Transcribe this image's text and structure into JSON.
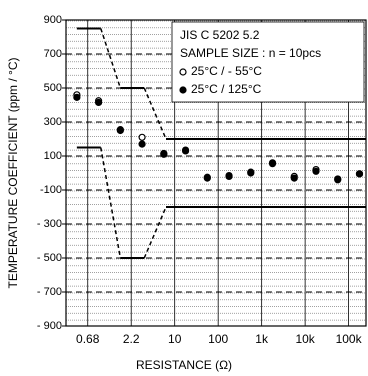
{
  "chart_data": {
    "type": "scatter",
    "x_label": "RESISTANCE  (Ω)",
    "y_label": "TEMPERATURE  COEFFICIENT (ppm / °C)",
    "annotations": [
      "JIS C 5202 5.2",
      "SAMPLE SIZE : n = 10pcs"
    ],
    "xlim": [
      -0.5,
      6.4
    ],
    "xticks": [
      {
        "value": 0,
        "label": "0.68"
      },
      {
        "value": 1,
        "label": "2.2"
      },
      {
        "value": 2,
        "label": "10"
      },
      {
        "value": 3,
        "label": "100"
      },
      {
        "value": 4,
        "label": "1k"
      },
      {
        "value": 5,
        "label": "10k"
      },
      {
        "value": 6,
        "label": "100k"
      }
    ],
    "ylim": [
      -900,
      900
    ],
    "yticks": [
      {
        "value": -900,
        "label": "- 900"
      },
      {
        "value": -700,
        "label": "- 700"
      },
      {
        "value": -500,
        "label": "- 500"
      },
      {
        "value": -300,
        "label": "- 300"
      },
      {
        "value": -100,
        "label": "-100"
      },
      100,
      300,
      500,
      700,
      900
    ],
    "grid": true,
    "x": [
      -0.25,
      0.25,
      0.75,
      1.25,
      1.75,
      2.25,
      2.75,
      3.25,
      3.75,
      4.25,
      4.75,
      5.25,
      5.75,
      6.25
    ],
    "series": [
      {
        "name": "25°C / - 55°C",
        "marker": "open",
        "color": "#000000",
        "values": [
          460,
          425,
          255,
          210,
          115,
          135,
          -25,
          -15,
          5,
          60,
          -20,
          20,
          -35,
          -5
        ]
      },
      {
        "name": "25°C / 125°C",
        "marker": "filled",
        "color": "#000000",
        "values": [
          445,
          415,
          250,
          170,
          110,
          130,
          -30,
          -20,
          0,
          55,
          -30,
          10,
          -40,
          -5
        ]
      }
    ],
    "limit_lines": [
      {
        "x": [
          -0.25,
          0.3,
          0.75,
          1.3,
          1.8,
          6.4
        ],
        "values": [
          850,
          850,
          500,
          500,
          200,
          200
        ]
      },
      {
        "x": [
          -0.25,
          0.3,
          0.75,
          1.3,
          1.8,
          6.4
        ],
        "values": [
          150,
          150,
          -500,
          -500,
          -200,
          -200
        ]
      }
    ]
  }
}
